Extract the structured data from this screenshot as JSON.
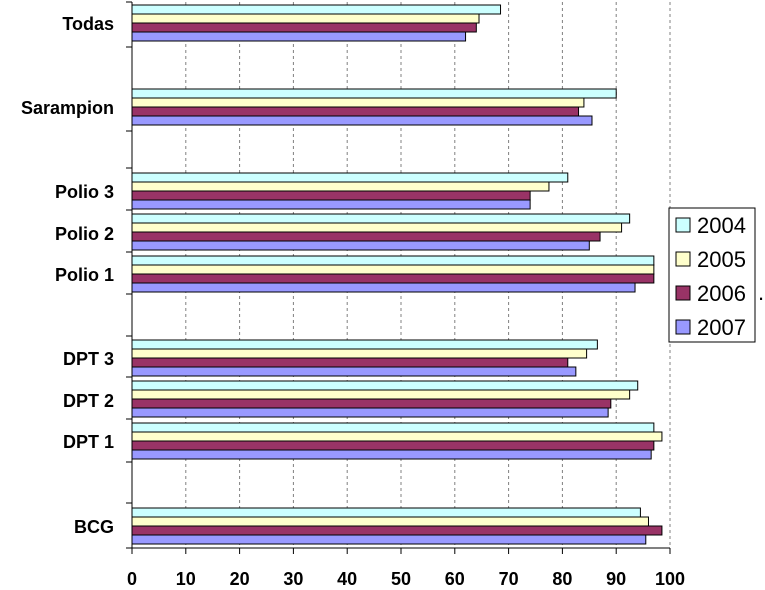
{
  "chart_data": {
    "type": "bar",
    "orientation": "horizontal",
    "x_axis_ticks": [
      "0",
      "10",
      "20",
      "30",
      "40",
      "50",
      "60",
      "70",
      "80",
      "90",
      "100"
    ],
    "xlim": [
      0,
      100
    ],
    "grid": "vertical dashed gridlines",
    "legend_position": "right",
    "categories": [
      "Todas",
      "Sarampion",
      "Polio 3",
      "Polio 2",
      "Polio 1",
      "DPT 3",
      "DPT 2",
      "DPT 1",
      "BCG"
    ],
    "series": [
      {
        "name": "2004",
        "color": "#ccffff",
        "values": [
          68.5,
          90,
          81,
          92.5,
          97,
          86.5,
          94,
          97,
          94.5
        ]
      },
      {
        "name": "2005",
        "color": "#ffffcc",
        "values": [
          64.5,
          84,
          77.5,
          91,
          97,
          84.5,
          92.5,
          98.5,
          96
        ]
      },
      {
        "name": "2006",
        "color": "#993366",
        "values": [
          64,
          83,
          74,
          87,
          97,
          81,
          89,
          97,
          98.5
        ]
      },
      {
        "name": "2007",
        "color": "#9999ff",
        "values": [
          62,
          85.5,
          74,
          85,
          93.5,
          82.5,
          88.5,
          96.5,
          95.5
        ]
      }
    ],
    "stray_mark": "."
  }
}
